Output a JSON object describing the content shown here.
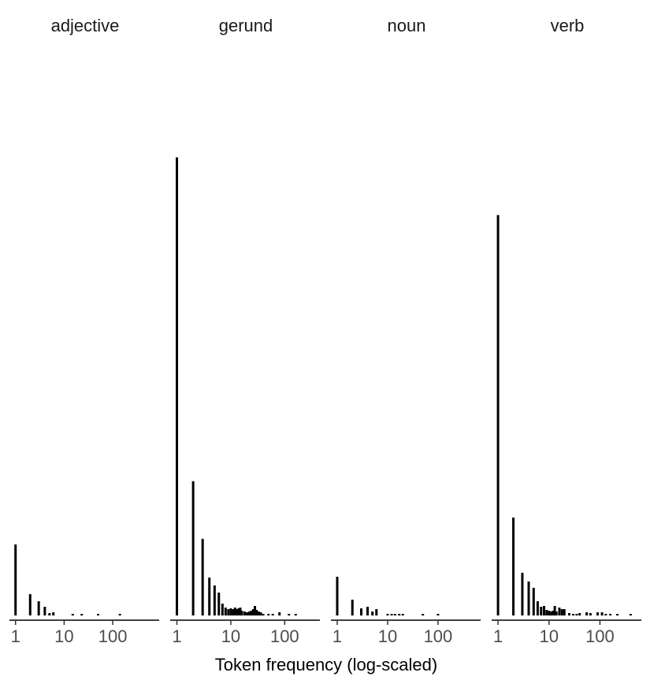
{
  "chart_data": {
    "type": "bar",
    "xlabel": "Token frequency (log-scaled)",
    "ylabel": "",
    "x_scale": "log10",
    "x_tick_labels": [
      "1",
      "10",
      "100"
    ],
    "x_ticks": [
      1,
      10,
      100
    ],
    "grid": false,
    "legend": "none",
    "bar_color": "#000000",
    "panels": [
      {
        "title": "adjective",
        "xlim": [
          0.75,
          900
        ],
        "bars": [
          {
            "x": 1,
            "y": 90
          },
          {
            "x": 2,
            "y": 27
          },
          {
            "x": 3,
            "y": 18
          },
          {
            "x": 4,
            "y": 11
          },
          {
            "x": 5,
            "y": 3
          },
          {
            "x": 6,
            "y": 4
          },
          {
            "x": 15,
            "y": 2
          },
          {
            "x": 23,
            "y": 2
          },
          {
            "x": 50,
            "y": 2
          },
          {
            "x": 140,
            "y": 2
          }
        ]
      },
      {
        "title": "gerund",
        "xlim": [
          0.75,
          450
        ],
        "bars": [
          {
            "x": 1,
            "y": 580
          },
          {
            "x": 2,
            "y": 170
          },
          {
            "x": 3,
            "y": 97
          },
          {
            "x": 4,
            "y": 48
          },
          {
            "x": 5,
            "y": 38
          },
          {
            "x": 6,
            "y": 29
          },
          {
            "x": 7,
            "y": 15
          },
          {
            "x": 8,
            "y": 10
          },
          {
            "x": 9,
            "y": 8
          },
          {
            "x": 10,
            "y": 9
          },
          {
            "x": 11,
            "y": 8
          },
          {
            "x": 12,
            "y": 10
          },
          {
            "x": 13,
            "y": 8
          },
          {
            "x": 14,
            "y": 9
          },
          {
            "x": 15,
            "y": 10
          },
          {
            "x": 16,
            "y": 6
          },
          {
            "x": 18,
            "y": 5
          },
          {
            "x": 20,
            "y": 4
          },
          {
            "x": 22,
            "y": 5
          },
          {
            "x": 24,
            "y": 6
          },
          {
            "x": 26,
            "y": 8
          },
          {
            "x": 28,
            "y": 12
          },
          {
            "x": 30,
            "y": 7
          },
          {
            "x": 33,
            "y": 5
          },
          {
            "x": 36,
            "y": 4
          },
          {
            "x": 40,
            "y": 2
          },
          {
            "x": 50,
            "y": 2
          },
          {
            "x": 60,
            "y": 2
          },
          {
            "x": 80,
            "y": 4
          },
          {
            "x": 120,
            "y": 2
          },
          {
            "x": 160,
            "y": 2
          }
        ]
      },
      {
        "title": "noun",
        "xlim": [
          0.75,
          700
        ],
        "bars": [
          {
            "x": 1,
            "y": 49
          },
          {
            "x": 2,
            "y": 20
          },
          {
            "x": 3,
            "y": 9
          },
          {
            "x": 4,
            "y": 11
          },
          {
            "x": 5,
            "y": 5
          },
          {
            "x": 6,
            "y": 8
          },
          {
            "x": 10,
            "y": 2
          },
          {
            "x": 12,
            "y": 2
          },
          {
            "x": 14,
            "y": 2
          },
          {
            "x": 17,
            "y": 2
          },
          {
            "x": 20,
            "y": 2
          },
          {
            "x": 50,
            "y": 2
          },
          {
            "x": 100,
            "y": 2
          }
        ]
      },
      {
        "title": "verb",
        "xlim": [
          0.75,
          650
        ],
        "bars": [
          {
            "x": 1,
            "y": 507
          },
          {
            "x": 2,
            "y": 124
          },
          {
            "x": 3,
            "y": 54
          },
          {
            "x": 4,
            "y": 43
          },
          {
            "x": 5,
            "y": 35
          },
          {
            "x": 6,
            "y": 18
          },
          {
            "x": 7,
            "y": 11
          },
          {
            "x": 8,
            "y": 12
          },
          {
            "x": 9,
            "y": 7
          },
          {
            "x": 10,
            "y": 6
          },
          {
            "x": 11,
            "y": 5
          },
          {
            "x": 12,
            "y": 6
          },
          {
            "x": 13,
            "y": 12
          },
          {
            "x": 14,
            "y": 5
          },
          {
            "x": 16,
            "y": 10
          },
          {
            "x": 18,
            "y": 8
          },
          {
            "x": 20,
            "y": 8
          },
          {
            "x": 25,
            "y": 3
          },
          {
            "x": 30,
            "y": 2
          },
          {
            "x": 35,
            "y": 2
          },
          {
            "x": 40,
            "y": 3
          },
          {
            "x": 55,
            "y": 4
          },
          {
            "x": 65,
            "y": 3
          },
          {
            "x": 90,
            "y": 4
          },
          {
            "x": 110,
            "y": 4
          },
          {
            "x": 130,
            "y": 2
          },
          {
            "x": 160,
            "y": 2
          },
          {
            "x": 220,
            "y": 2
          },
          {
            "x": 400,
            "y": 2
          }
        ]
      }
    ],
    "ylim": [
      0,
      610
    ]
  }
}
